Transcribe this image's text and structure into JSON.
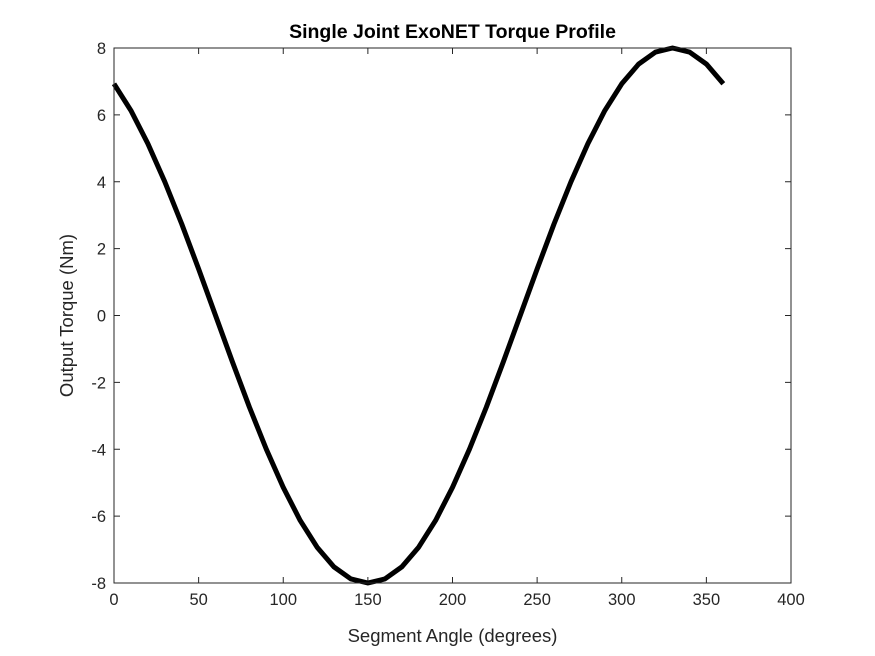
{
  "chart_data": {
    "type": "line",
    "title": "Single Joint ExoNET Torque Profile",
    "xlabel": "Segment Angle (degrees)",
    "ylabel": "Output Torque (Nm)",
    "xlim": [
      0,
      400
    ],
    "ylim": [
      -8,
      8
    ],
    "xticks": [
      0,
      50,
      100,
      150,
      200,
      250,
      300,
      350,
      400
    ],
    "yticks": [
      -8,
      -6,
      -4,
      -2,
      0,
      2,
      4,
      6,
      8
    ],
    "xtick_labels": [
      "0",
      "50",
      "100",
      "150",
      "200",
      "250",
      "300",
      "350",
      "400"
    ],
    "ytick_labels": [
      "-8",
      "-6",
      "-4",
      "-2",
      "0",
      "2",
      "4",
      "6",
      "8"
    ],
    "grid": false,
    "box": true,
    "line_color": "#000000",
    "axis_color": "#262626",
    "series": [
      {
        "x": [
          0,
          10,
          20,
          30,
          40,
          50,
          60,
          70,
          80,
          90,
          100,
          110,
          120,
          130,
          140,
          150,
          160,
          170,
          180,
          190,
          200,
          210,
          220,
          230,
          240,
          250,
          260,
          270,
          280,
          290,
          300,
          310,
          320,
          330,
          340,
          350,
          360
        ],
        "y": [
          6.93,
          6.13,
          5.14,
          4.0,
          2.74,
          1.39,
          0.0,
          -1.39,
          -2.74,
          -4.0,
          -5.14,
          -6.13,
          -6.93,
          -7.52,
          -7.88,
          -8.0,
          -7.88,
          -7.52,
          -6.93,
          -6.13,
          -5.14,
          -4.0,
          -2.74,
          -1.39,
          0.0,
          1.39,
          2.74,
          4.0,
          5.14,
          6.13,
          6.93,
          7.52,
          7.88,
          8.0,
          7.88,
          7.52,
          6.93
        ]
      }
    ]
  }
}
